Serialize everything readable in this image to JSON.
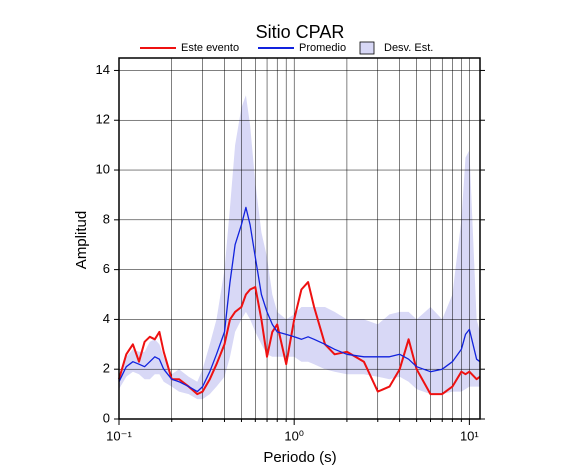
{
  "chart_data": {
    "type": "line",
    "title": "Sitio CPAR",
    "x_label": "Periodo (s)",
    "y_label": "Amplitud",
    "x_log": true,
    "xlim": [
      0.1,
      11.5
    ],
    "ylim": [
      0,
      14.5
    ],
    "xticks": [
      {
        "value": 0.1,
        "label": "10⁻¹"
      },
      {
        "value": 1,
        "label": "10⁰"
      },
      {
        "value": 10,
        "label": "10¹"
      }
    ],
    "x_minor_grid": [
      0.2,
      0.3,
      0.4,
      0.5,
      0.6,
      0.7,
      0.8,
      0.9,
      2,
      3,
      4,
      5,
      6,
      7,
      8,
      9
    ],
    "yticks": [
      0,
      2,
      4,
      6,
      8,
      10,
      12,
      14
    ],
    "grid": true,
    "legend": "top",
    "x": [
      0.1,
      0.11,
      0.12,
      0.13,
      0.14,
      0.15,
      0.16,
      0.17,
      0.18,
      0.2,
      0.22,
      0.25,
      0.28,
      0.3,
      0.33,
      0.36,
      0.4,
      0.43,
      0.46,
      0.5,
      0.53,
      0.56,
      0.6,
      0.65,
      0.7,
      0.75,
      0.8,
      0.9,
      1.0,
      1.1,
      1.2,
      1.3,
      1.5,
      1.7,
      2,
      2.5,
      3,
      3.5,
      4,
      4.5,
      5,
      6,
      7,
      8,
      9,
      9.5,
      10,
      11,
      11.5
    ],
    "series": [
      {
        "name": "Este evento",
        "color": "#ee1111",
        "values": [
          1.6,
          2.6,
          3.0,
          2.3,
          3.1,
          3.3,
          3.2,
          3.5,
          2.7,
          1.6,
          1.6,
          1.3,
          1.0,
          1.1,
          1.6,
          2.2,
          3.0,
          4.0,
          4.3,
          4.5,
          5.0,
          5.2,
          5.3,
          4.0,
          2.5,
          3.5,
          3.8,
          2.2,
          4.0,
          5.2,
          5.5,
          4.5,
          3.0,
          2.6,
          2.7,
          2.3,
          1.1,
          1.3,
          2.0,
          3.2,
          2.0,
          1.0,
          1.0,
          1.3,
          1.9,
          1.8,
          1.9,
          1.6,
          1.7
        ]
      },
      {
        "name": "Promedio",
        "color": "#1122dd",
        "values": [
          1.5,
          2.1,
          2.3,
          2.2,
          2.1,
          2.3,
          2.5,
          2.4,
          2.0,
          1.6,
          1.5,
          1.3,
          1.1,
          1.3,
          1.9,
          2.6,
          3.5,
          5.5,
          7.0,
          7.8,
          8.5,
          7.8,
          6.5,
          5.0,
          4.3,
          3.8,
          3.5,
          3.4,
          3.3,
          3.2,
          3.3,
          3.2,
          3.0,
          2.8,
          2.6,
          2.5,
          2.5,
          2.5,
          2.6,
          2.4,
          2.1,
          1.9,
          2.0,
          2.3,
          2.8,
          3.4,
          3.6,
          2.4,
          2.3
        ]
      }
    ],
    "band": {
      "name": "Desv. Est.",
      "color": "#d8d8f6",
      "upper": [
        1.8,
        2.5,
        2.8,
        2.7,
        2.7,
        3.1,
        3.2,
        3.0,
        2.5,
        1.8,
        2.0,
        1.7,
        1.5,
        2.0,
        3.0,
        4.0,
        6.0,
        8.5,
        11.0,
        12.5,
        13.0,
        11.8,
        9.5,
        7.5,
        6.5,
        5.0,
        4.3,
        4.0,
        4.2,
        4.5,
        4.5,
        4.5,
        4.5,
        4.3,
        4.0,
        4.0,
        3.8,
        4.2,
        4.3,
        4.3,
        4.0,
        4.5,
        4.0,
        5.0,
        8.0,
        10.5,
        10.8,
        4.0,
        3.5
      ],
      "lower": [
        1.2,
        1.7,
        1.9,
        1.8,
        1.6,
        1.6,
        1.8,
        1.8,
        1.5,
        1.3,
        1.1,
        1.0,
        0.8,
        0.8,
        1.0,
        1.3,
        1.7,
        2.5,
        3.5,
        4.0,
        4.3,
        4.0,
        3.5,
        3.0,
        2.6,
        2.5,
        2.5,
        2.5,
        2.5,
        2.3,
        2.3,
        2.2,
        2.0,
        1.9,
        1.8,
        1.8,
        1.7,
        1.6,
        1.7,
        1.5,
        1.2,
        1.0,
        1.0,
        1.1,
        1.1,
        1.2,
        1.3,
        1.3,
        1.3
      ]
    }
  }
}
